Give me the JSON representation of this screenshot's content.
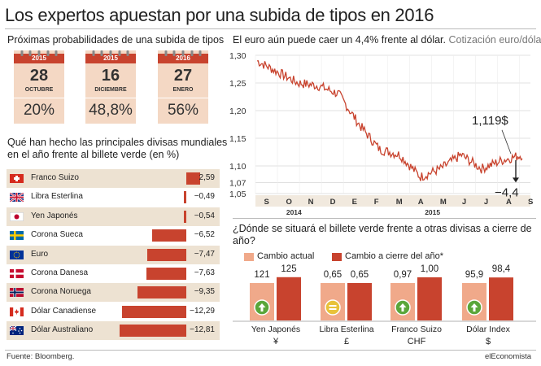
{
  "title": "Los expertos apuestan por una subida de tipos en 2016",
  "probabilities": {
    "heading": "Próximas probabilidades de una subida de tipos",
    "dates": [
      {
        "year": "2015",
        "day": "28",
        "month": "OCTUBRE",
        "pct": "20%"
      },
      {
        "year": "2015",
        "day": "16",
        "month": "DICIEMBRE",
        "pct": "48,8%"
      },
      {
        "year": "2016",
        "day": "27",
        "month": "ENERO",
        "pct": "56%"
      }
    ]
  },
  "chart_data": [
    {
      "type": "bar",
      "title": "Qué han hecho las principales divisas mundiales en el año frente al billete verde",
      "title_line1": "Qué han hecho las principales divisas mundiales",
      "title_line2": "en el año frente al billete verde",
      "unit": "(en %)",
      "orientation": "horizontal",
      "categories": [
        "Franco Suizo",
        "Libra Esterlina",
        "Yen Japonés",
        "Corona Sueca",
        "Euro",
        "Corona Danesa",
        "Corona Noruega",
        "Dólar Canadiense",
        "Dólar Australiano"
      ],
      "values": [
        2.59,
        -0.49,
        -0.54,
        -6.52,
        -7.47,
        -7.63,
        -9.35,
        -12.29,
        -12.81
      ],
      "value_labels": [
        "2,59",
        "−0,49",
        "−0,54",
        "−6,52",
        "−7,47",
        "−7,63",
        "−9,35",
        "−12,29",
        "−12,81"
      ],
      "flags": [
        "switzerland",
        "uk",
        "japan",
        "sweden",
        "eu",
        "denmark",
        "norway",
        "canada",
        "australia"
      ],
      "bar_color": "#c8432e"
    },
    {
      "type": "line",
      "title": "El euro aún puede caer un 4,4% frente al dólar.",
      "subtitle": "Cotización euro/dólar",
      "y_ticks": [
        "1,30",
        "1,25",
        "1,20",
        "1,15",
        "1,10",
        "1,07",
        "1,05"
      ],
      "ylim": [
        1.05,
        1.3
      ],
      "x_ticks": [
        "S",
        "O",
        "N",
        "D",
        "E",
        "F",
        "M",
        "A",
        "M",
        "J",
        "J",
        "A",
        "S"
      ],
      "year_labels": [
        "2014",
        "2015"
      ],
      "current_value_label": "1,119$",
      "target_label": "−4,4",
      "target_value": 1.07,
      "line_color": "#c8432e",
      "monthly": [
        1.29,
        1.27,
        1.25,
        1.245,
        1.23,
        1.175,
        1.13,
        1.12,
        1.08,
        1.095,
        1.12,
        1.095,
        1.11,
        1.12
      ]
    },
    {
      "type": "bar",
      "title": "¿Dónde se situará el billete verde frente a otras divisas a cierre de año?",
      "title_line1": "¿Dónde se situará el billete verde frente a otras divisas a cierre de",
      "title_line2": "año?",
      "categories": [
        "Yen Japonés",
        "Libra Esterlina",
        "Franco Suizo",
        "Dólar Index"
      ],
      "symbols": [
        "¥",
        "£",
        "CHF",
        "$"
      ],
      "series": [
        {
          "name": "Cambio actual",
          "values": [
            121,
            0.65,
            0.97,
            95.9
          ],
          "labels": [
            "121",
            "0,65",
            "0,97",
            "95,9"
          ],
          "color": "#f0a98a"
        },
        {
          "name": "Cambio a cierre del año*",
          "values": [
            125,
            0.65,
            1.0,
            98.4
          ],
          "labels": [
            "125",
            "0,65",
            "1,00",
            "98,4"
          ],
          "color": "#c8432e"
        }
      ],
      "indicators": [
        "up",
        "equal",
        "up",
        "up"
      ],
      "indicator_colors": {
        "up": "#5aa63a",
        "equal": "#e8c23a"
      }
    }
  ],
  "footer": {
    "source": "Fuente: Bloomberg.",
    "brand": "elEconomista"
  }
}
